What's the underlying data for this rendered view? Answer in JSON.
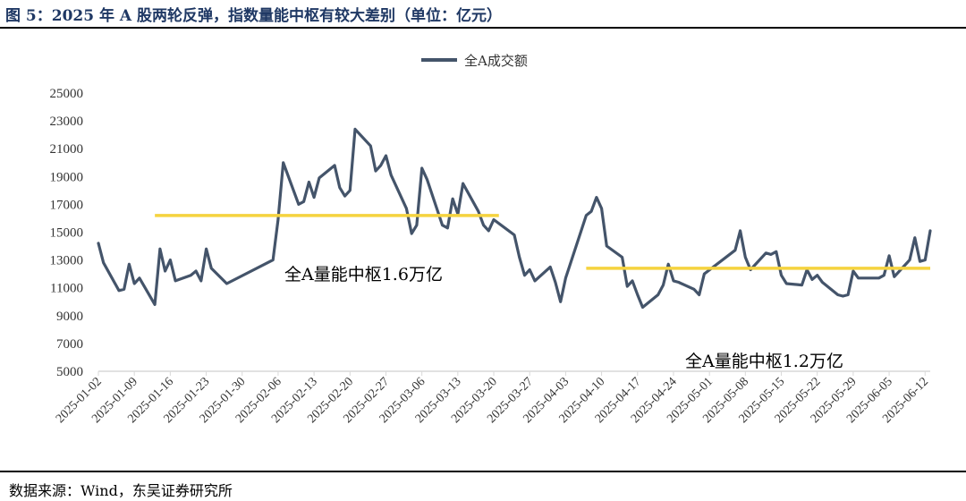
{
  "figure": {
    "title": "图 5：2025 年 A 股两轮反弹，指数量能中枢有较大差别（单位：亿元）",
    "source": "数据来源：Wind，东吴证券研究所"
  },
  "colors": {
    "series": "#44546a",
    "reference": "#f5d33f",
    "axis": "#d9d9d9"
  },
  "chart_data": {
    "type": "line",
    "title": "",
    "xlabel": "",
    "ylabel": "",
    "ylim": [
      5000,
      25000
    ],
    "yticks": [
      5000,
      7000,
      9000,
      11000,
      13000,
      15000,
      17000,
      19000,
      21000,
      23000,
      25000
    ],
    "xticks": [
      "2025-01-02",
      "2025-01-09",
      "2025-01-16",
      "2025-01-23",
      "2025-01-30",
      "2025-02-06",
      "2025-02-13",
      "2025-02-20",
      "2025-02-27",
      "2025-03-06",
      "2025-03-13",
      "2025-03-20",
      "2025-03-27",
      "2025-04-03",
      "2025-04-10",
      "2025-04-17",
      "2025-04-24",
      "2025-05-01",
      "2025-05-08",
      "2025-05-15",
      "2025-05-22",
      "2025-05-29",
      "2025-06-05",
      "2025-06-12"
    ],
    "legend": {
      "label": "全A成交额",
      "position": "top-center"
    },
    "series": [
      {
        "name": "全A成交额",
        "points": [
          [
            "2025-01-02",
            14200
          ],
          [
            "2025-01-03",
            12800
          ],
          [
            "2025-01-06",
            10800
          ],
          [
            "2025-01-07",
            10900
          ],
          [
            "2025-01-08",
            12700
          ],
          [
            "2025-01-09",
            11300
          ],
          [
            "2025-01-10",
            11700
          ],
          [
            "2025-01-13",
            9800
          ],
          [
            "2025-01-14",
            13800
          ],
          [
            "2025-01-15",
            12200
          ],
          [
            "2025-01-16",
            13000
          ],
          [
            "2025-01-17",
            11500
          ],
          [
            "2025-01-20",
            11900
          ],
          [
            "2025-01-21",
            12200
          ],
          [
            "2025-01-22",
            11500
          ],
          [
            "2025-01-23",
            13800
          ],
          [
            "2025-01-24",
            12400
          ],
          [
            "2025-01-27",
            11300
          ],
          [
            "2025-02-05",
            13000
          ],
          [
            "2025-02-06",
            15900
          ],
          [
            "2025-02-07",
            20000
          ],
          [
            "2025-02-10",
            17000
          ],
          [
            "2025-02-11",
            17200
          ],
          [
            "2025-02-12",
            18600
          ],
          [
            "2025-02-13",
            17500
          ],
          [
            "2025-02-14",
            18900
          ],
          [
            "2025-02-17",
            19800
          ],
          [
            "2025-02-18",
            18200
          ],
          [
            "2025-02-19",
            17600
          ],
          [
            "2025-02-20",
            18000
          ],
          [
            "2025-02-21",
            22400
          ],
          [
            "2025-02-24",
            21200
          ],
          [
            "2025-02-25",
            19400
          ],
          [
            "2025-02-26",
            19800
          ],
          [
            "2025-02-27",
            20500
          ],
          [
            "2025-02-28",
            19100
          ],
          [
            "2025-03-03",
            16700
          ],
          [
            "2025-03-04",
            14900
          ],
          [
            "2025-03-05",
            15500
          ],
          [
            "2025-03-06",
            19600
          ],
          [
            "2025-03-07",
            18800
          ],
          [
            "2025-03-10",
            15500
          ],
          [
            "2025-03-11",
            15300
          ],
          [
            "2025-03-12",
            17400
          ],
          [
            "2025-03-13",
            16300
          ],
          [
            "2025-03-14",
            18500
          ],
          [
            "2025-03-17",
            16500
          ],
          [
            "2025-03-18",
            15500
          ],
          [
            "2025-03-19",
            15100
          ],
          [
            "2025-03-20",
            15900
          ],
          [
            "2025-03-24",
            14800
          ],
          [
            "2025-03-25",
            13200
          ],
          [
            "2025-03-26",
            11900
          ],
          [
            "2025-03-27",
            12300
          ],
          [
            "2025-03-28",
            11500
          ],
          [
            "2025-03-31",
            12500
          ],
          [
            "2025-04-01",
            11400
          ],
          [
            "2025-04-02",
            10000
          ],
          [
            "2025-04-03",
            11700
          ],
          [
            "2025-04-07",
            16200
          ],
          [
            "2025-04-08",
            16500
          ],
          [
            "2025-04-09",
            17500
          ],
          [
            "2025-04-10",
            16700
          ],
          [
            "2025-04-11",
            14000
          ],
          [
            "2025-04-14",
            13200
          ],
          [
            "2025-04-15",
            11100
          ],
          [
            "2025-04-16",
            11500
          ],
          [
            "2025-04-17",
            10500
          ],
          [
            "2025-04-18",
            9600
          ],
          [
            "2025-04-21",
            10500
          ],
          [
            "2025-04-22",
            11200
          ],
          [
            "2025-04-23",
            12700
          ],
          [
            "2025-04-24",
            11500
          ],
          [
            "2025-04-25",
            11400
          ],
          [
            "2025-04-28",
            10900
          ],
          [
            "2025-04-29",
            10500
          ],
          [
            "2025-04-30",
            12000
          ],
          [
            "2025-05-06",
            13700
          ],
          [
            "2025-05-07",
            15100
          ],
          [
            "2025-05-08",
            13200
          ],
          [
            "2025-05-09",
            12300
          ],
          [
            "2025-05-12",
            13500
          ],
          [
            "2025-05-13",
            13400
          ],
          [
            "2025-05-14",
            13600
          ],
          [
            "2025-05-15",
            11900
          ],
          [
            "2025-05-16",
            11300
          ],
          [
            "2025-05-19",
            11200
          ],
          [
            "2025-05-20",
            12300
          ],
          [
            "2025-05-21",
            11600
          ],
          [
            "2025-05-22",
            11900
          ],
          [
            "2025-05-23",
            11400
          ],
          [
            "2025-05-26",
            10500
          ],
          [
            "2025-05-27",
            10400
          ],
          [
            "2025-05-28",
            10500
          ],
          [
            "2025-05-29",
            12200
          ],
          [
            "2025-05-30",
            11700
          ],
          [
            "2025-06-03",
            11700
          ],
          [
            "2025-06-04",
            11900
          ],
          [
            "2025-06-05",
            13300
          ],
          [
            "2025-06-06",
            11800
          ],
          [
            "2025-06-09",
            13000
          ],
          [
            "2025-06-10",
            14600
          ],
          [
            "2025-06-11",
            12900
          ],
          [
            "2025-06-12",
            13000
          ],
          [
            "2025-06-13",
            15100
          ]
        ]
      }
    ],
    "reference_lines": [
      {
        "label": "全A量能中枢1.6万亿",
        "value": 16200,
        "from": "2025-01-13",
        "to": "2025-03-21"
      },
      {
        "label": "全A量能中枢1.2万亿",
        "value": 12400,
        "from": "2025-04-07",
        "to": "2025-06-13"
      }
    ]
  }
}
